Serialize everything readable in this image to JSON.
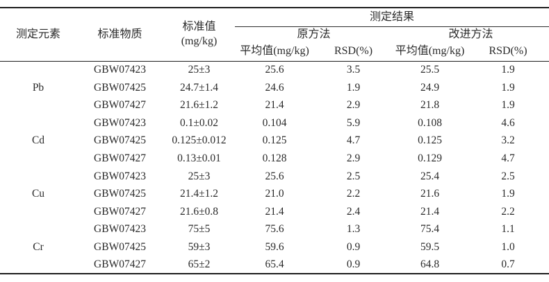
{
  "table": {
    "header": {
      "col_element": "测定元素",
      "col_material": "标准物质",
      "col_standard_line1": "标准值",
      "col_standard_line2": "(mg/kg)",
      "group_results": "测定结果",
      "group_original": "原方法",
      "group_improved": "改进方法",
      "col_mean_original": "平均值(mg/kg)",
      "col_rsd_original": "RSD(%)",
      "col_mean_improved": "平均值(mg/kg)",
      "col_rsd_improved": "RSD(%)"
    },
    "groups": [
      {
        "element": "Pb",
        "rows": [
          {
            "material": "GBW07423",
            "standard": "25±3",
            "orig_mean": "25.6",
            "orig_rsd": "3.5",
            "impr_mean": "25.5",
            "impr_rsd": "1.9"
          },
          {
            "material": "GBW07425",
            "standard": "24.7±1.4",
            "orig_mean": "24.6",
            "orig_rsd": "1.9",
            "impr_mean": "24.9",
            "impr_rsd": "1.9"
          },
          {
            "material": "GBW07427",
            "standard": "21.6±1.2",
            "orig_mean": "21.4",
            "orig_rsd": "2.9",
            "impr_mean": "21.8",
            "impr_rsd": "1.9"
          }
        ]
      },
      {
        "element": "Cd",
        "rows": [
          {
            "material": "GBW07423",
            "standard": "0.1±0.02",
            "orig_mean": "0.104",
            "orig_rsd": "5.9",
            "impr_mean": "0.108",
            "impr_rsd": "4.6"
          },
          {
            "material": "GBW07425",
            "standard": "0.125±0.012",
            "orig_mean": "0.125",
            "orig_rsd": "4.7",
            "impr_mean": "0.125",
            "impr_rsd": "3.2"
          },
          {
            "material": "GBW07427",
            "standard": "0.13±0.01",
            "orig_mean": "0.128",
            "orig_rsd": "2.9",
            "impr_mean": "0.129",
            "impr_rsd": "4.7"
          }
        ]
      },
      {
        "element": "Cu",
        "rows": [
          {
            "material": "GBW07423",
            "standard": "25±3",
            "orig_mean": "25.6",
            "orig_rsd": "2.5",
            "impr_mean": "25.4",
            "impr_rsd": "2.5"
          },
          {
            "material": "GBW07425",
            "standard": "21.4±1.2",
            "orig_mean": "21.0",
            "orig_rsd": "2.2",
            "impr_mean": "21.6",
            "impr_rsd": "1.9"
          },
          {
            "material": "GBW07427",
            "standard": "21.6±0.8",
            "orig_mean": "21.4",
            "orig_rsd": "2.4",
            "impr_mean": "21.4",
            "impr_rsd": "2.2"
          }
        ]
      },
      {
        "element": "Cr",
        "rows": [
          {
            "material": "GBW07423",
            "standard": "75±5",
            "orig_mean": "75.6",
            "orig_rsd": "1.3",
            "impr_mean": "75.4",
            "impr_rsd": "1.1"
          },
          {
            "material": "GBW07425",
            "standard": "59±3",
            "orig_mean": "59.6",
            "orig_rsd": "0.9",
            "impr_mean": "59.5",
            "impr_rsd": "1.0"
          },
          {
            "material": "GBW07427",
            "standard": "65±2",
            "orig_mean": "65.4",
            "orig_rsd": "0.9",
            "impr_mean": "64.8",
            "impr_rsd": "0.7"
          }
        ]
      }
    ]
  },
  "colors": {
    "text": "#2a2a2a",
    "rule": "#1b1b1b",
    "background": "#ffffff"
  }
}
